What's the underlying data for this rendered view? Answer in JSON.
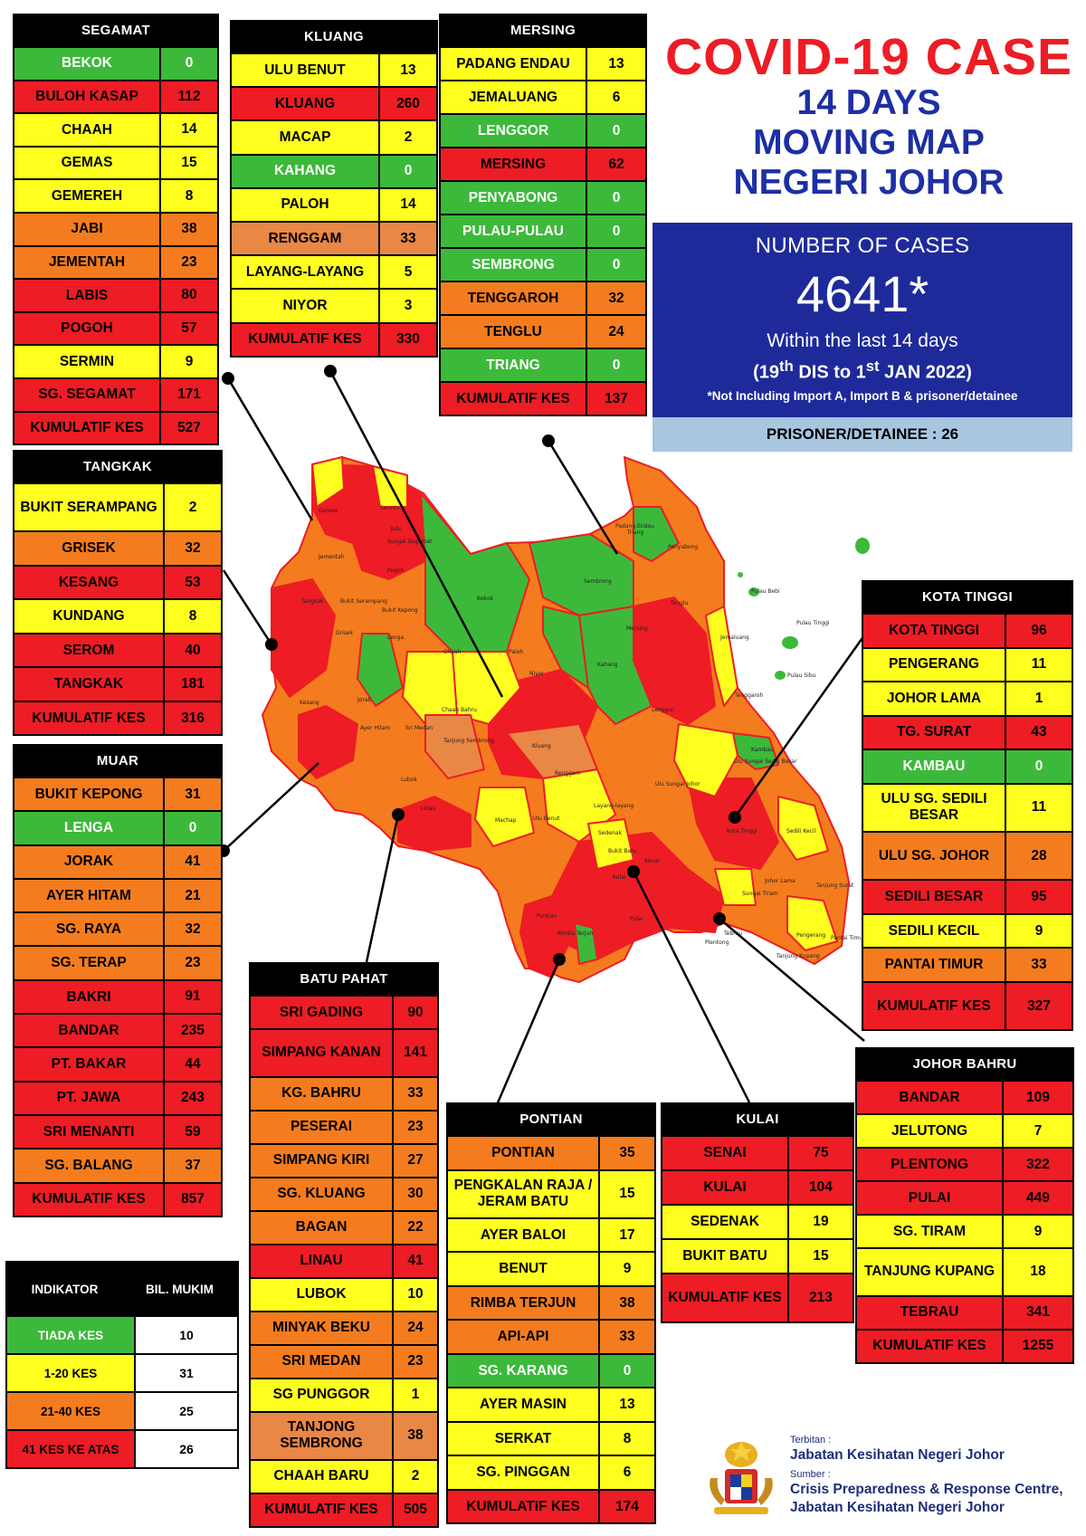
{
  "title": {
    "line1": "COVID-19 CASE",
    "line2": "14 DAYS",
    "line3": "MOVING MAP",
    "line4": "NEGERI JOHOR"
  },
  "summary": {
    "label": "NUMBER OF CASES",
    "total": "4641*",
    "within": "Within the last 14 days",
    "range_a": "(19",
    "range_sup1": "th",
    "range_b": " DIS to 1",
    "range_sup2": "st",
    "range_c": " JAN 2022)",
    "note": "*Not Including Import A, Import B & prisoner/detainee",
    "prisoner": "PRISONER/DETAINEE : 26"
  },
  "colors": {
    "tiada": "#3cb93a",
    "low": "#ffff1f",
    "mid": "#f47c1e",
    "high": "#ee1c24",
    "summary_bg": "#1e2a9a",
    "title_red": "#ee1c24",
    "title_blue": "#1d2fa4"
  },
  "districts": {
    "segamat": {
      "name": "SEGAMAT",
      "rows": [
        {
          "n": "BEKOK",
          "v": "0",
          "c": "G"
        },
        {
          "n": "BULOH KASAP",
          "v": "112",
          "c": "R"
        },
        {
          "n": "CHAAH",
          "v": "14",
          "c": "Y"
        },
        {
          "n": "GEMAS",
          "v": "15",
          "c": "Y"
        },
        {
          "n": "GEMEREH",
          "v": "8",
          "c": "Y"
        },
        {
          "n": "JABI",
          "v": "38",
          "c": "O"
        },
        {
          "n": "JEMENTAH",
          "v": "23",
          "c": "O"
        },
        {
          "n": "LABIS",
          "v": "80",
          "c": "R"
        },
        {
          "n": "POGOH",
          "v": "57",
          "c": "R"
        },
        {
          "n": "SERMIN",
          "v": "9",
          "c": "Y"
        },
        {
          "n": "SG. SEGAMAT",
          "v": "171",
          "c": "R"
        },
        {
          "n": "KUMULATIF KES",
          "v": "527",
          "c": "K"
        }
      ]
    },
    "kluang": {
      "name": "KLUANG",
      "rows": [
        {
          "n": "ULU BENUT",
          "v": "13",
          "c": "Y"
        },
        {
          "n": "KLUANG",
          "v": "260",
          "c": "R"
        },
        {
          "n": "MACAP",
          "v": "2",
          "c": "Y"
        },
        {
          "n": "KAHANG",
          "v": "0",
          "c": "G"
        },
        {
          "n": "PALOH",
          "v": "14",
          "c": "Y"
        },
        {
          "n": "RENGGAM",
          "v": "33",
          "c": "S"
        },
        {
          "n": "LAYANG-LAYANG",
          "v": "5",
          "c": "Y"
        },
        {
          "n": "NIYOR",
          "v": "3",
          "c": "Y"
        },
        {
          "n": "KUMULATIF KES",
          "v": "330",
          "c": "K"
        }
      ]
    },
    "mersing": {
      "name": "MERSING",
      "rows": [
        {
          "n": "PADANG ENDAU",
          "v": "13",
          "c": "Y"
        },
        {
          "n": "JEMALUANG",
          "v": "6",
          "c": "Y"
        },
        {
          "n": "LENGGOR",
          "v": "0",
          "c": "G"
        },
        {
          "n": "MERSING",
          "v": "62",
          "c": "R"
        },
        {
          "n": "PENYABONG",
          "v": "0",
          "c": "G"
        },
        {
          "n": "PULAU-PULAU",
          "v": "0",
          "c": "G"
        },
        {
          "n": "SEMBRONG",
          "v": "0",
          "c": "G"
        },
        {
          "n": "TENGGAROH",
          "v": "32",
          "c": "O"
        },
        {
          "n": "TENGLU",
          "v": "24",
          "c": "O"
        },
        {
          "n": "TRIANG",
          "v": "0",
          "c": "G"
        },
        {
          "n": "KUMULATIF KES",
          "v": "137",
          "c": "K"
        }
      ]
    },
    "tangkak": {
      "name": "TANGKAK",
      "rows": [
        {
          "n": "BUKIT SERAMPANG",
          "v": "2",
          "c": "Y"
        },
        {
          "n": "GRISEK",
          "v": "32",
          "c": "O"
        },
        {
          "n": "KESANG",
          "v": "53",
          "c": "R"
        },
        {
          "n": "KUNDANG",
          "v": "8",
          "c": "Y"
        },
        {
          "n": "SEROM",
          "v": "40",
          "c": "R"
        },
        {
          "n": "TANGKAK",
          "v": "181",
          "c": "R"
        },
        {
          "n": "KUMULATIF KES",
          "v": "316",
          "c": "K"
        }
      ]
    },
    "muar": {
      "name": "MUAR",
      "rows": [
        {
          "n": "BUKIT KEPONG",
          "v": "31",
          "c": "O"
        },
        {
          "n": "LENGA",
          "v": "0",
          "c": "G"
        },
        {
          "n": "JORAK",
          "v": "41",
          "c": "O"
        },
        {
          "n": "AYER HITAM",
          "v": "21",
          "c": "O"
        },
        {
          "n": "SG. RAYA",
          "v": "32",
          "c": "O"
        },
        {
          "n": "SG. TERAP",
          "v": "23",
          "c": "O"
        },
        {
          "n": "BAKRI",
          "v": "91",
          "c": "R"
        },
        {
          "n": "BANDAR",
          "v": "235",
          "c": "R"
        },
        {
          "n": "PT. BAKAR",
          "v": "44",
          "c": "R"
        },
        {
          "n": "PT. JAWA",
          "v": "243",
          "c": "R"
        },
        {
          "n": "SRI MENANTI",
          "v": "59",
          "c": "R"
        },
        {
          "n": "SG. BALANG",
          "v": "37",
          "c": "O"
        },
        {
          "n": "KUMULATIF KES",
          "v": "857",
          "c": "K"
        }
      ]
    },
    "batu_pahat": {
      "name": "BATU PAHAT",
      "rows": [
        {
          "n": "SRI GADING",
          "v": "90",
          "c": "R"
        },
        {
          "n": "SIMPANG KANAN",
          "v": "141",
          "c": "R"
        },
        {
          "n": "KG. BAHRU",
          "v": "33",
          "c": "O"
        },
        {
          "n": "PESERAI",
          "v": "23",
          "c": "O"
        },
        {
          "n": "SIMPANG KIRI",
          "v": "27",
          "c": "O"
        },
        {
          "n": "SG. KLUANG",
          "v": "30",
          "c": "O"
        },
        {
          "n": "BAGAN",
          "v": "22",
          "c": "O"
        },
        {
          "n": "LINAU",
          "v": "41",
          "c": "R"
        },
        {
          "n": "LUBOK",
          "v": "10",
          "c": "Y"
        },
        {
          "n": "MINYAK BEKU",
          "v": "24",
          "c": "O"
        },
        {
          "n": "SRI MEDAN",
          "v": "23",
          "c": "O"
        },
        {
          "n": "SG PUNGGOR",
          "v": "1",
          "c": "Y"
        },
        {
          "n": "TANJONG SEMBRONG",
          "v": "38",
          "c": "S"
        },
        {
          "n": "CHAAH BARU",
          "v": "2",
          "c": "Y"
        },
        {
          "n": "KUMULATIF KES",
          "v": "505",
          "c": "K"
        }
      ]
    },
    "pontian": {
      "name": "PONTIAN",
      "rows": [
        {
          "n": "PONTIAN",
          "v": "35",
          "c": "O"
        },
        {
          "n": "PENGKALAN RAJA / JERAM BATU",
          "v": "15",
          "c": "Y"
        },
        {
          "n": "AYER BALOI",
          "v": "17",
          "c": "Y"
        },
        {
          "n": "BENUT",
          "v": "9",
          "c": "Y"
        },
        {
          "n": "RIMBA TERJUN",
          "v": "38",
          "c": "O"
        },
        {
          "n": "API-API",
          "v": "33",
          "c": "O"
        },
        {
          "n": "SG. KARANG",
          "v": "0",
          "c": "G"
        },
        {
          "n": "AYER MASIN",
          "v": "13",
          "c": "Y"
        },
        {
          "n": "SERKAT",
          "v": "8",
          "c": "Y"
        },
        {
          "n": "SG. PINGGAN",
          "v": "6",
          "c": "Y"
        },
        {
          "n": "KUMULATIF KES",
          "v": "174",
          "c": "K"
        }
      ]
    },
    "kulai": {
      "name": "KULAI",
      "rows": [
        {
          "n": "SENAI",
          "v": "75",
          "c": "R"
        },
        {
          "n": "KULAI",
          "v": "104",
          "c": "R"
        },
        {
          "n": "SEDENAK",
          "v": "19",
          "c": "Y"
        },
        {
          "n": "BUKIT BATU",
          "v": "15",
          "c": "Y"
        },
        {
          "n": "KUMULATIF KES",
          "v": "213",
          "c": "K"
        }
      ]
    },
    "kota_tinggi": {
      "name": "KOTA TINGGI",
      "rows": [
        {
          "n": "KOTA TINGGI",
          "v": "96",
          "c": "R"
        },
        {
          "n": "PENGERANG",
          "v": "11",
          "c": "Y"
        },
        {
          "n": "JOHOR LAMA",
          "v": "1",
          "c": "Y"
        },
        {
          "n": "TG. SURAT",
          "v": "43",
          "c": "R"
        },
        {
          "n": "KAMBAU",
          "v": "0",
          "c": "G"
        },
        {
          "n": "ULU SG. SEDILI BESAR",
          "v": "11",
          "c": "Y"
        },
        {
          "n": "ULU  SG. JOHOR",
          "v": "28",
          "c": "O"
        },
        {
          "n": "SEDILI BESAR",
          "v": "95",
          "c": "R"
        },
        {
          "n": "SEDILI KECIL",
          "v": "9",
          "c": "Y"
        },
        {
          "n": "PANTAI TIMUR",
          "v": "33",
          "c": "O"
        },
        {
          "n": "KUMULATIF KES",
          "v": "327",
          "c": "K"
        }
      ]
    },
    "johor_bahru": {
      "name": "JOHOR BAHRU",
      "rows": [
        {
          "n": "BANDAR",
          "v": "109",
          "c": "R"
        },
        {
          "n": "JELUTONG",
          "v": "7",
          "c": "Y"
        },
        {
          "n": "PLENTONG",
          "v": "322",
          "c": "R"
        },
        {
          "n": "PULAI",
          "v": "449",
          "c": "R"
        },
        {
          "n": "SG. TIRAM",
          "v": "9",
          "c": "Y"
        },
        {
          "n": "TANJUNG KUPANG",
          "v": "18",
          "c": "Y"
        },
        {
          "n": "TEBRAU",
          "v": "341",
          "c": "R"
        },
        {
          "n": "KUMULATIF KES",
          "v": "1255",
          "c": "K"
        }
      ]
    }
  },
  "legend": {
    "h1": "INDIKATOR",
    "h2": "BIL. MUKIM",
    "rows": [
      {
        "label": "TIADA KES",
        "count": "10",
        "c": "G"
      },
      {
        "label": "1-20 KES",
        "count": "31",
        "c": "Y"
      },
      {
        "label": "21-40 KES",
        "count": "25",
        "c": "O"
      },
      {
        "label": "41 KES KE ATAS",
        "count": "26",
        "c": "R"
      }
    ]
  },
  "credits": {
    "terbitan_label": "Terbitan :",
    "terbitan": "Jabatan Kesihatan Negeri Johor",
    "sumber_label": "Sumber :",
    "sumber1": "Crisis Preparedness & Response Centre,",
    "sumber2": "Jabatan Kesihatan Negeri Johor"
  },
  "map_labels": [
    {
      "t": "Gemas"
    },
    {
      "t": "Sermin"
    },
    {
      "t": "Jabi"
    },
    {
      "t": "Sungai Segamat"
    },
    {
      "t": "Pogoh"
    },
    {
      "t": "Jementah"
    },
    {
      "t": "Bekok"
    },
    {
      "t": "Sembrong"
    },
    {
      "t": "Triang"
    },
    {
      "t": "Penyabong"
    },
    {
      "t": "Padang Endau"
    },
    {
      "t": "Tenglu"
    },
    {
      "t": "Tangkak"
    },
    {
      "t": "Bukit Serampang"
    },
    {
      "t": "Bukit Kepong"
    },
    {
      "t": "Grisek"
    },
    {
      "t": "Lenga"
    },
    {
      "t": "Chaah"
    },
    {
      "t": "Paloh"
    },
    {
      "t": "Niyor"
    },
    {
      "t": "Kahang"
    },
    {
      "t": "Lenggor"
    },
    {
      "t": "Mersing"
    },
    {
      "t": "Jemaluang"
    },
    {
      "t": "Tenggaroh"
    },
    {
      "t": "Jorak"
    },
    {
      "t": "Chaah Bahru"
    },
    {
      "t": "Tanjung Sembrong"
    },
    {
      "t": "Kluang"
    },
    {
      "t": "Kesang"
    },
    {
      "t": "Ayer Hitam"
    },
    {
      "t": "Sri Medan"
    },
    {
      "t": "Renggam"
    },
    {
      "t": "Ulu Sungai Johor"
    },
    {
      "t": "Ulu Sungai Sedili Besar"
    },
    {
      "t": "Kambau"
    },
    {
      "t": "Linau"
    },
    {
      "t": "Lubok"
    },
    {
      "t": "Machap"
    },
    {
      "t": "Layang-layang"
    },
    {
      "t": "Sedenak"
    },
    {
      "t": "Kota Tinggi"
    },
    {
      "t": "Sedili Kecil"
    },
    {
      "t": "Ulu Benut"
    },
    {
      "t": "Bukit Batu"
    },
    {
      "t": "Senai"
    },
    {
      "t": "Kulai"
    },
    {
      "t": "Johor Lama"
    },
    {
      "t": "Tanjung Surat"
    },
    {
      "t": "Sungai Tiram"
    },
    {
      "t": "Pontian"
    },
    {
      "t": "Pulai"
    },
    {
      "t": "Tebrau"
    },
    {
      "t": "Plentong"
    },
    {
      "t": "Pengerang"
    },
    {
      "t": "Pantai Timur"
    },
    {
      "t": "Tanjung Kupang"
    },
    {
      "t": "Rimba Terjun"
    },
    {
      "t": "Pulau Bebi"
    },
    {
      "t": "Pulau Tinggi"
    },
    {
      "t": "Pulau Sibu"
    }
  ]
}
